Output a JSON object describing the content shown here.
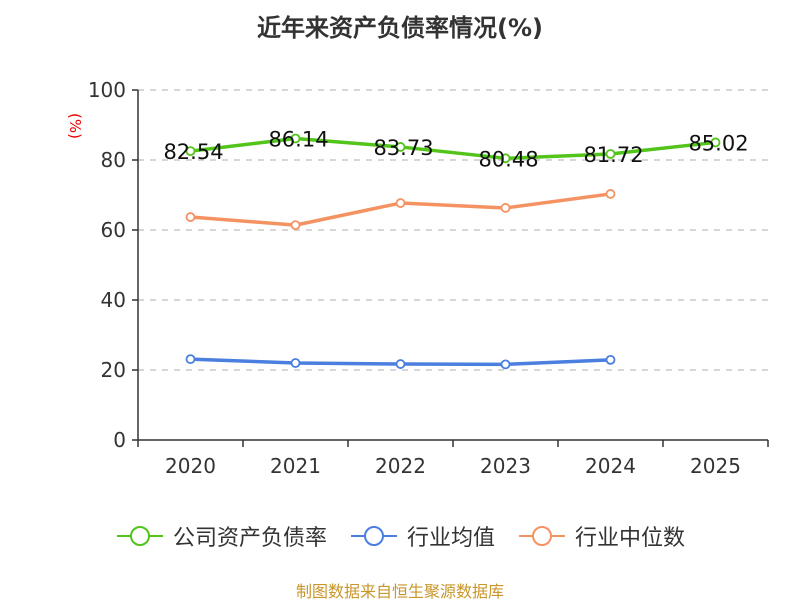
{
  "title": "近年来资产负债率情况(%)",
  "source": "制图数据来自恒生聚源数据库",
  "chart_data": {
    "type": "line",
    "title": "近年来资产负债率情况(%)",
    "xlabel": "",
    "ylabel": "(%)",
    "ylim": [
      0,
      100
    ],
    "yticks": [
      0,
      20,
      40,
      60,
      80,
      100
    ],
    "grid": true,
    "legend_position": "bottom",
    "categories": [
      "2020",
      "2021",
      "2022",
      "2023",
      "2024",
      "2025"
    ],
    "series": [
      {
        "name": "公司资产负债率",
        "color": "#52c41a",
        "values": [
          82.54,
          86.14,
          83.73,
          80.48,
          81.72,
          85.02
        ],
        "labels": [
          "82.54",
          "86.14",
          "83.73",
          "80.48",
          "81.72",
          "85.02"
        ]
      },
      {
        "name": "行业均值",
        "color": "#4a7fe0",
        "values": [
          23.1,
          22.0,
          21.7,
          21.6,
          22.9,
          null
        ]
      },
      {
        "name": "行业中位数",
        "color": "#f59262",
        "values": [
          63.7,
          61.4,
          67.7,
          66.3,
          70.3,
          null
        ]
      }
    ]
  }
}
